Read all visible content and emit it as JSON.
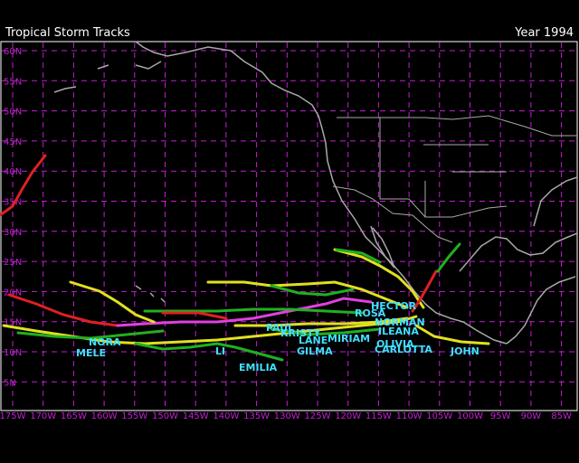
{
  "header": {
    "title": "Tropical Storm Tracks",
    "year": "Year 1994"
  },
  "map": {
    "latitude_labels": [
      "60N",
      "55N",
      "50N",
      "45N",
      "40N",
      "35N",
      "30N",
      "25N",
      "20N",
      "15N",
      "10N",
      "5N"
    ],
    "longitude_labels": [
      "175W",
      "170W",
      "165W",
      "160W",
      "155W",
      "150W",
      "145W",
      "140W",
      "135W",
      "130W",
      "125W",
      "120W",
      "115W",
      "110W",
      "105W",
      "100W",
      "95W",
      "90W",
      "85W"
    ],
    "storm_names": [
      "HECTOR",
      "ROSA",
      "NORMAN",
      "ILEANA",
      "PAUL",
      "KRISTY",
      "LANE",
      "MIRIAM",
      "OLIVIA",
      "CARLOTTA",
      "GILMA",
      "JOHN",
      "NORA",
      "MELE",
      "LI",
      "EMILIA"
    ]
  }
}
